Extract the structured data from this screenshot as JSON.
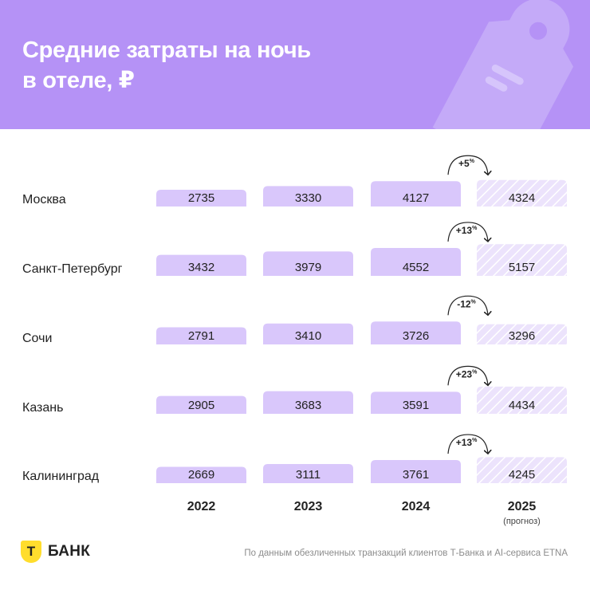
{
  "title_lines": [
    "Средние затраты на ночь",
    "в отеле, ₽"
  ],
  "brand": {
    "logo_letter": "Т",
    "name": "БАНК",
    "logo_color": "#ffdd2d"
  },
  "source_note": "По данным обезличенных транзакций клиентов Т-Банка и AI-сервиса ETNA",
  "colors": {
    "header": "#b592f6",
    "bar": "#d9c7fb",
    "forecast_bar": "#ece3fc"
  },
  "chart_data": {
    "type": "bar",
    "title": "Средние затраты на ночь в отеле, ₽",
    "categories": [
      "Москва",
      "Санкт-Петербург",
      "Сочи",
      "Казань",
      "Калининград"
    ],
    "years": [
      "2022",
      "2023",
      "2024",
      "2025"
    ],
    "forecast_note": "(прогноз)",
    "series": [
      {
        "name": "2022",
        "values": [
          2735,
          3432,
          2791,
          2905,
          2669
        ]
      },
      {
        "name": "2023",
        "values": [
          3330,
          3979,
          3410,
          3683,
          3111
        ]
      },
      {
        "name": "2024",
        "values": [
          4127,
          4552,
          3726,
          3591,
          3761
        ]
      },
      {
        "name": "2025",
        "values": [
          4324,
          5157,
          3296,
          4434,
          4245
        ]
      }
    ],
    "changes": [
      {
        "value": "+5",
        "unit": "%"
      },
      {
        "value": "+13",
        "unit": "%"
      },
      {
        "value": "-12",
        "unit": "%"
      },
      {
        "value": "+23",
        "unit": "%"
      },
      {
        "value": "+13",
        "unit": "%"
      }
    ]
  }
}
